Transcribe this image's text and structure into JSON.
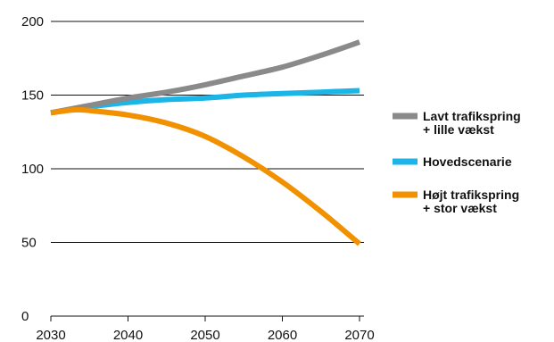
{
  "chart_data": {
    "type": "line",
    "title": "",
    "xlabel": "",
    "ylabel": "",
    "xlim": [
      2030,
      2070
    ],
    "ylim": [
      0,
      200
    ],
    "x_ticks": [
      2030,
      2040,
      2050,
      2060,
      2070
    ],
    "y_ticks": [
      0,
      50,
      100,
      150,
      200
    ],
    "grid": "horizontal",
    "legend_position": "right",
    "series": [
      {
        "name": "Lavt trafikspring\n+ lille vækst",
        "color": "#8a8a8a",
        "x": [
          2030,
          2035,
          2040,
          2045,
          2050,
          2055,
          2060,
          2065,
          2070
        ],
        "y": [
          138,
          143,
          148,
          152,
          157,
          163,
          169,
          177,
          186
        ]
      },
      {
        "name": "Hovedscenarie",
        "color": "#1bb5e8",
        "x": [
          2030,
          2035,
          2040,
          2045,
          2050,
          2055,
          2060,
          2065,
          2070
        ],
        "y": [
          138,
          142,
          145,
          147,
          148,
          150,
          151,
          152,
          153
        ]
      },
      {
        "name": "Højt trafikspring\n+ stor vækst",
        "color": "#f29100",
        "x": [
          2030,
          2033,
          2035,
          2040,
          2045,
          2050,
          2055,
          2060,
          2065,
          2070
        ],
        "y": [
          138,
          140,
          139.5,
          136.5,
          131,
          122,
          108,
          91,
          71,
          49
        ]
      }
    ]
  }
}
